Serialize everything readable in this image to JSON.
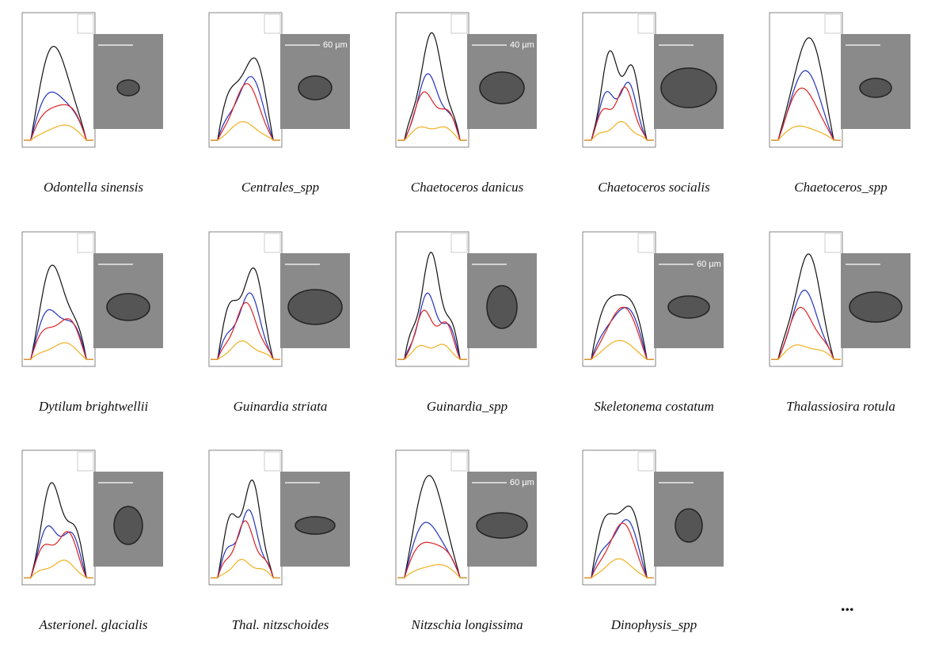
{
  "figure": {
    "panels": [
      {
        "caption": "Odontella sinensis"
      },
      {
        "caption": "Centrales_spp",
        "scale": "60 µm"
      },
      {
        "caption": "Chaetoceros danicus",
        "scale": "40 µm"
      },
      {
        "caption": "Chaetoceros socialis"
      },
      {
        "caption": "Chaetoceros_spp"
      },
      {
        "caption": "Dytilum brightwellii"
      },
      {
        "caption": "Guinardia striata"
      },
      {
        "caption": "Guinardia_spp"
      },
      {
        "caption": "Skeletonema costatum",
        "scale": "60 µm"
      },
      {
        "caption": "Thalassiosira rotula"
      },
      {
        "caption": "Asterionel. glacialis"
      },
      {
        "caption": "Thal. nitzschoides"
      },
      {
        "caption": "Nitzschia longissima",
        "scale": "60 µm"
      },
      {
        "caption": "Dinophysis_spp"
      }
    ],
    "more": "..."
  }
}
